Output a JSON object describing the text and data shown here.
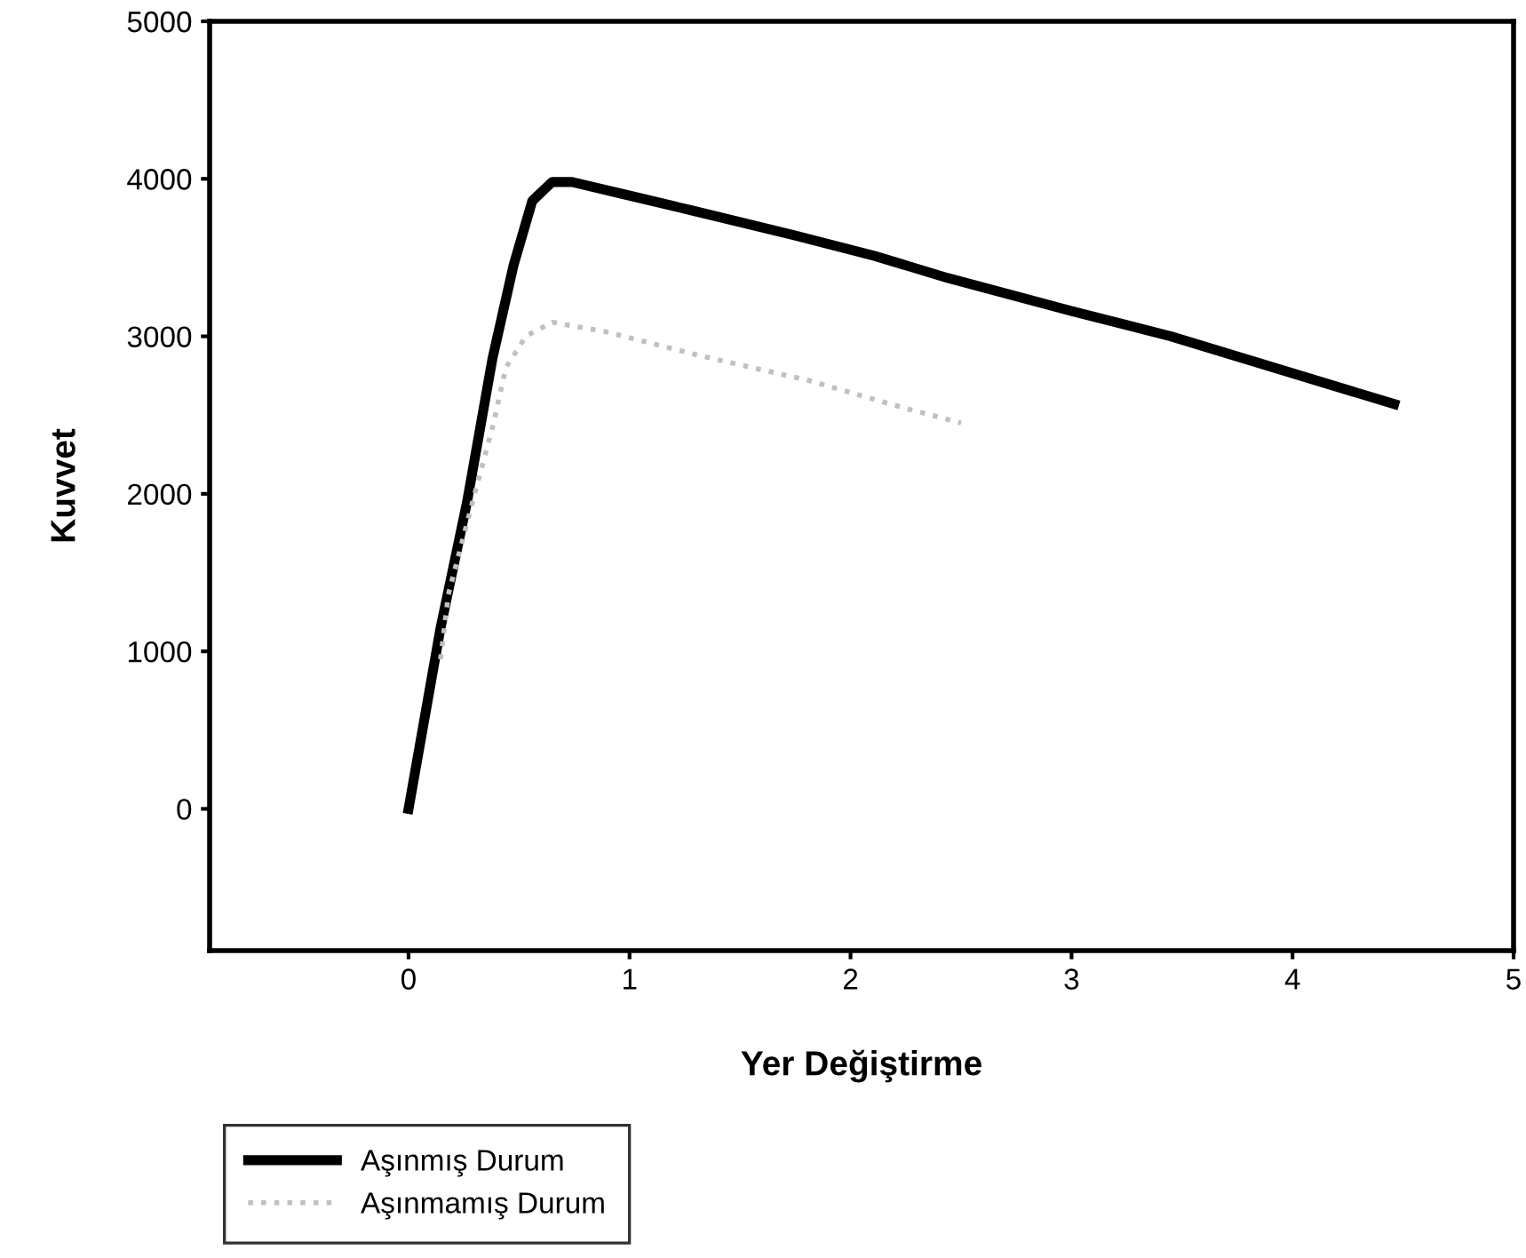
{
  "chart_data": {
    "type": "line",
    "xlabel": "Yer Değiştirme",
    "ylabel": "Kuvvet",
    "xlim": [
      -0.9,
      5
    ],
    "ylim": [
      -900,
      5000
    ],
    "xticks": [
      0,
      1,
      2,
      3,
      4,
      5
    ],
    "yticks": [
      0,
      1000,
      2000,
      3000,
      4000,
      5000
    ],
    "grid": false,
    "legend": "bottom left",
    "series": [
      {
        "name": "Aşınmış Durum",
        "color": "#000000",
        "line_style": "solid",
        "x": [
          0,
          0.145,
          0.265,
          0.38,
          0.475,
          0.56,
          0.65,
          0.74,
          0.98,
          1.28,
          1.75,
          2.11,
          2.44,
          3.0,
          3.45,
          4.46
        ],
        "values": [
          0,
          1150,
          1950,
          2860,
          3450,
          3860,
          3980,
          3980,
          3900,
          3800,
          3640,
          3510,
          3370,
          3160,
          3000,
          2570
        ]
      },
      {
        "name": "Aşınmamış Durum",
        "color": "#c0c0c0",
        "line_style": "dotted",
        "x": [
          0.145,
          0.18,
          0.29,
          0.385,
          0.44,
          0.53,
          0.65,
          0.89,
          1.31,
          1.81,
          2.23,
          2.5
        ],
        "values": [
          950,
          1360,
          1950,
          2450,
          2800,
          3000,
          3090,
          3030,
          2880,
          2720,
          2550,
          2450
        ]
      }
    ]
  }
}
